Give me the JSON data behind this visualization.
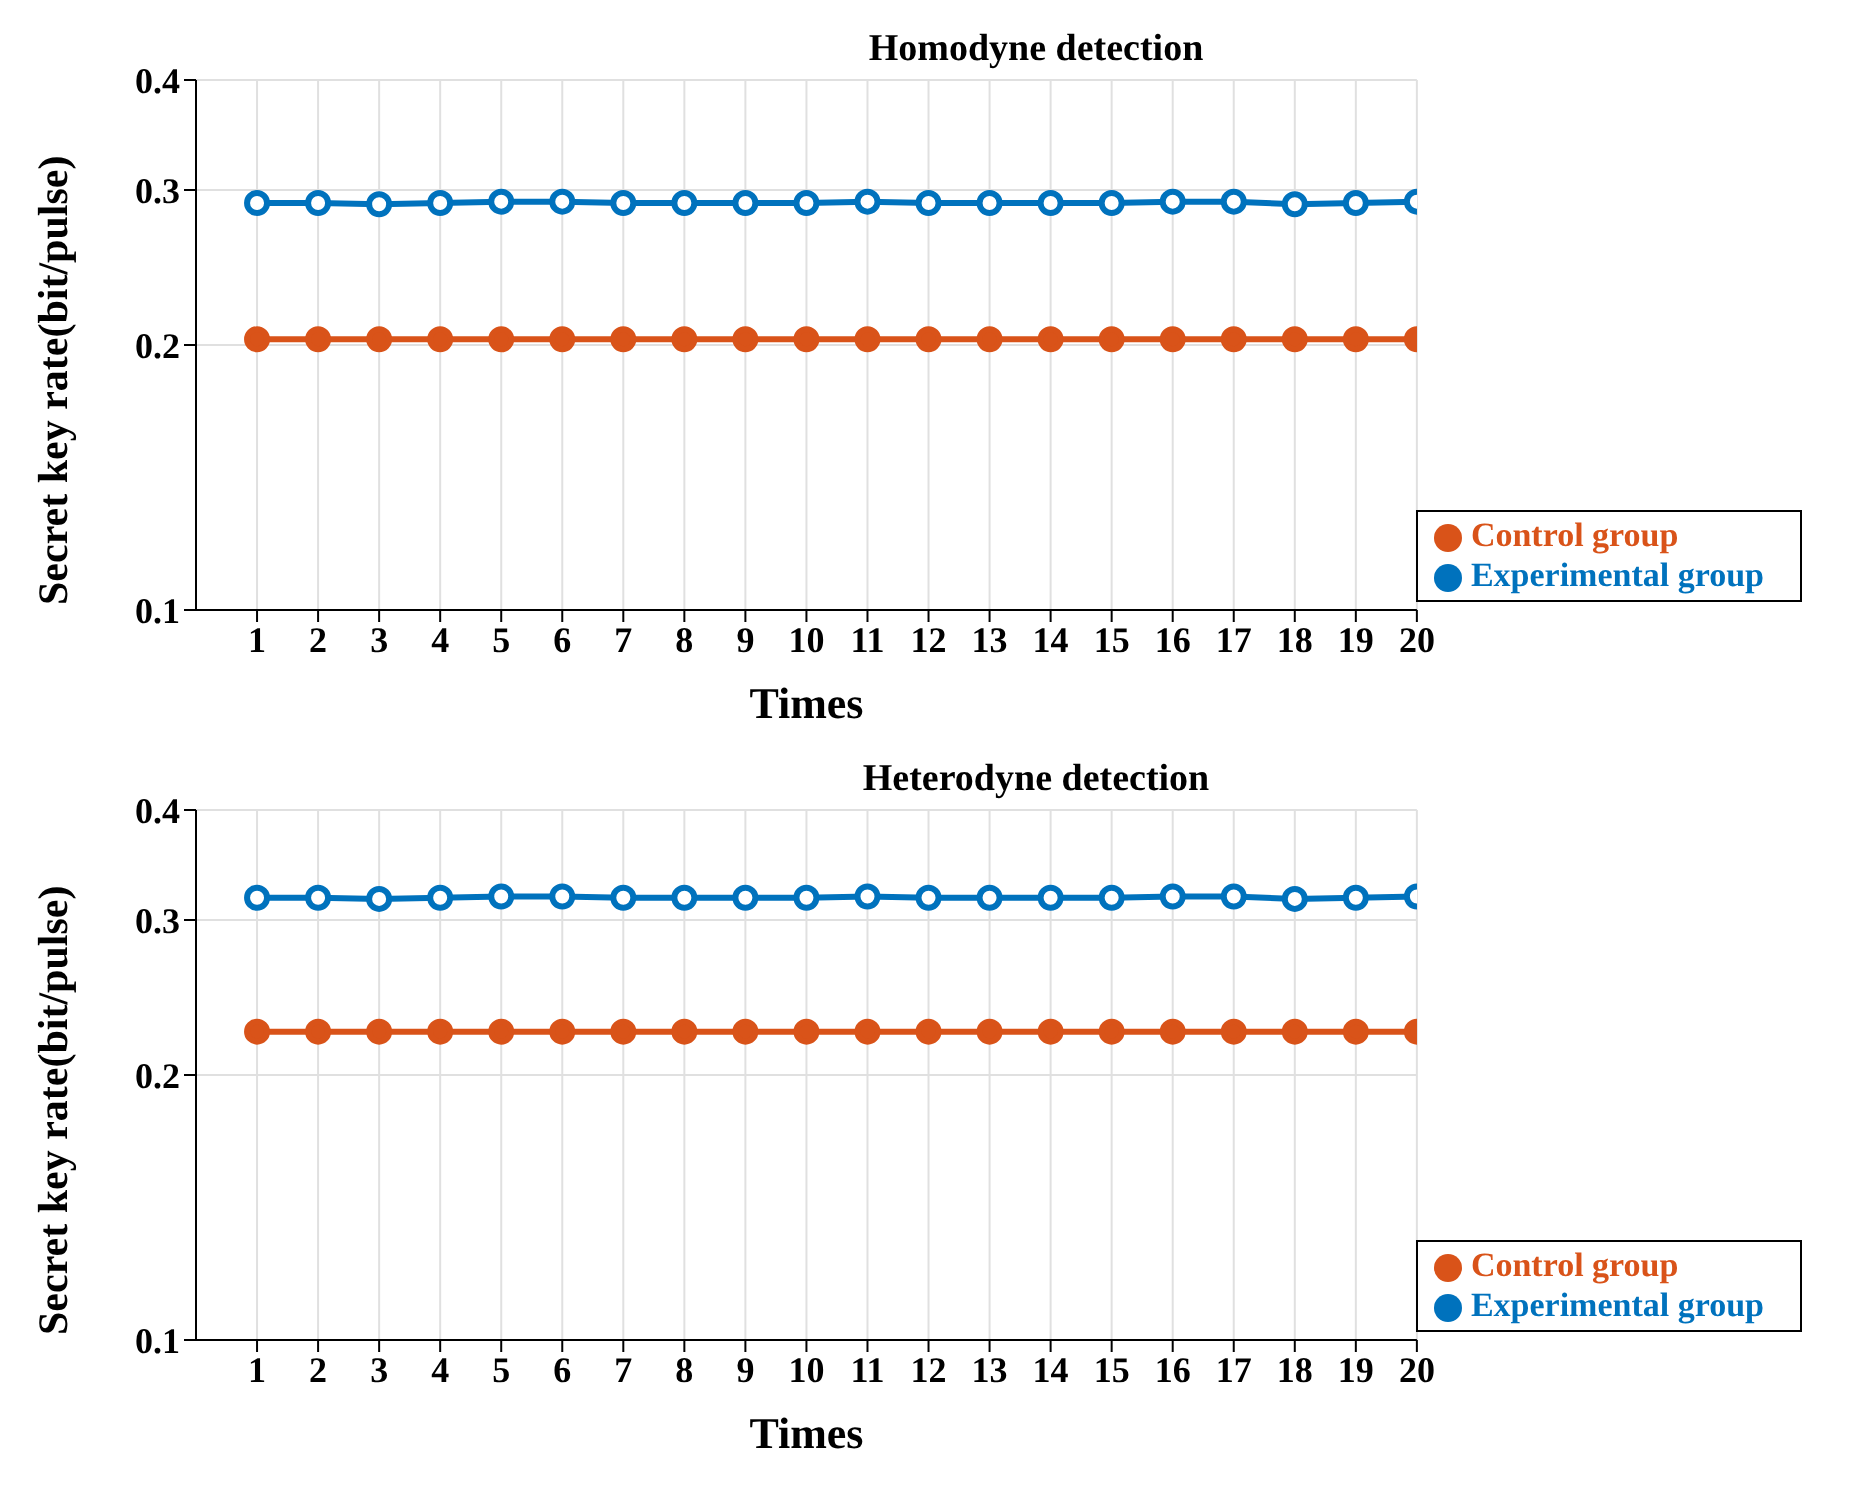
{
  "chart_data": [
    {
      "type": "line",
      "title": "Homodyne detection",
      "xlabel": "Times",
      "ylabel": "Secret key rate(bit/pulse)",
      "log": "y",
      "grid": true,
      "legend": "bottom right",
      "marker": "circle",
      "x": [
        1,
        2,
        3,
        4,
        5,
        6,
        7,
        8,
        9,
        10,
        11,
        12,
        13,
        14,
        15,
        16,
        17,
        18,
        19,
        20
      ],
      "xlim": [
        0,
        20
      ],
      "xticks": [
        1,
        2,
        3,
        4,
        5,
        6,
        7,
        8,
        9,
        10,
        11,
        12,
        13,
        14,
        15,
        16,
        17,
        18,
        19,
        20
      ],
      "ylim": [
        0.1,
        0.4
      ],
      "yticks": [
        0.1,
        0.2,
        0.3,
        0.4
      ],
      "series": [
        {
          "name": "Experimental group",
          "color": "#0072bd",
          "values": [
            0.29,
            0.29,
            0.289,
            0.29,
            0.291,
            0.291,
            0.29,
            0.29,
            0.29,
            0.29,
            0.291,
            0.29,
            0.29,
            0.29,
            0.29,
            0.291,
            0.291,
            0.289,
            0.29,
            0.291
          ]
        },
        {
          "name": "Control group",
          "color": "#d95319",
          "values": [
            0.203,
            0.203,
            0.203,
            0.203,
            0.203,
            0.203,
            0.203,
            0.203,
            0.203,
            0.203,
            0.203,
            0.203,
            0.203,
            0.203,
            0.203,
            0.203,
            0.203,
            0.203,
            0.203,
            0.203
          ]
        }
      ]
    },
    {
      "type": "line",
      "title": "Heterodyne detection",
      "xlabel": "Times",
      "ylabel": "Secret key rate(bit/pulse)",
      "log": "y",
      "grid": true,
      "legend": "bottom right",
      "marker": "circle",
      "x": [
        1,
        2,
        3,
        4,
        5,
        6,
        7,
        8,
        9,
        10,
        11,
        12,
        13,
        14,
        15,
        16,
        17,
        18,
        19,
        20
      ],
      "xlim": [
        0,
        20
      ],
      "xticks": [
        1,
        2,
        3,
        4,
        5,
        6,
        7,
        8,
        9,
        10,
        11,
        12,
        13,
        14,
        15,
        16,
        17,
        18,
        19,
        20
      ],
      "ylim": [
        0.1,
        0.4
      ],
      "yticks": [
        0.1,
        0.2,
        0.3,
        0.4
      ],
      "series": [
        {
          "name": "Experimental group",
          "color": "#0072bd",
          "values": [
            0.318,
            0.318,
            0.317,
            0.318,
            0.319,
            0.319,
            0.318,
            0.318,
            0.318,
            0.318,
            0.319,
            0.318,
            0.318,
            0.318,
            0.318,
            0.319,
            0.319,
            0.317,
            0.318,
            0.319
          ]
        },
        {
          "name": "Control group",
          "color": "#d95319",
          "values": [
            0.224,
            0.224,
            0.224,
            0.224,
            0.224,
            0.224,
            0.224,
            0.224,
            0.224,
            0.224,
            0.224,
            0.224,
            0.224,
            0.224,
            0.224,
            0.224,
            0.224,
            0.224,
            0.224,
            0.224
          ]
        }
      ]
    }
  ]
}
